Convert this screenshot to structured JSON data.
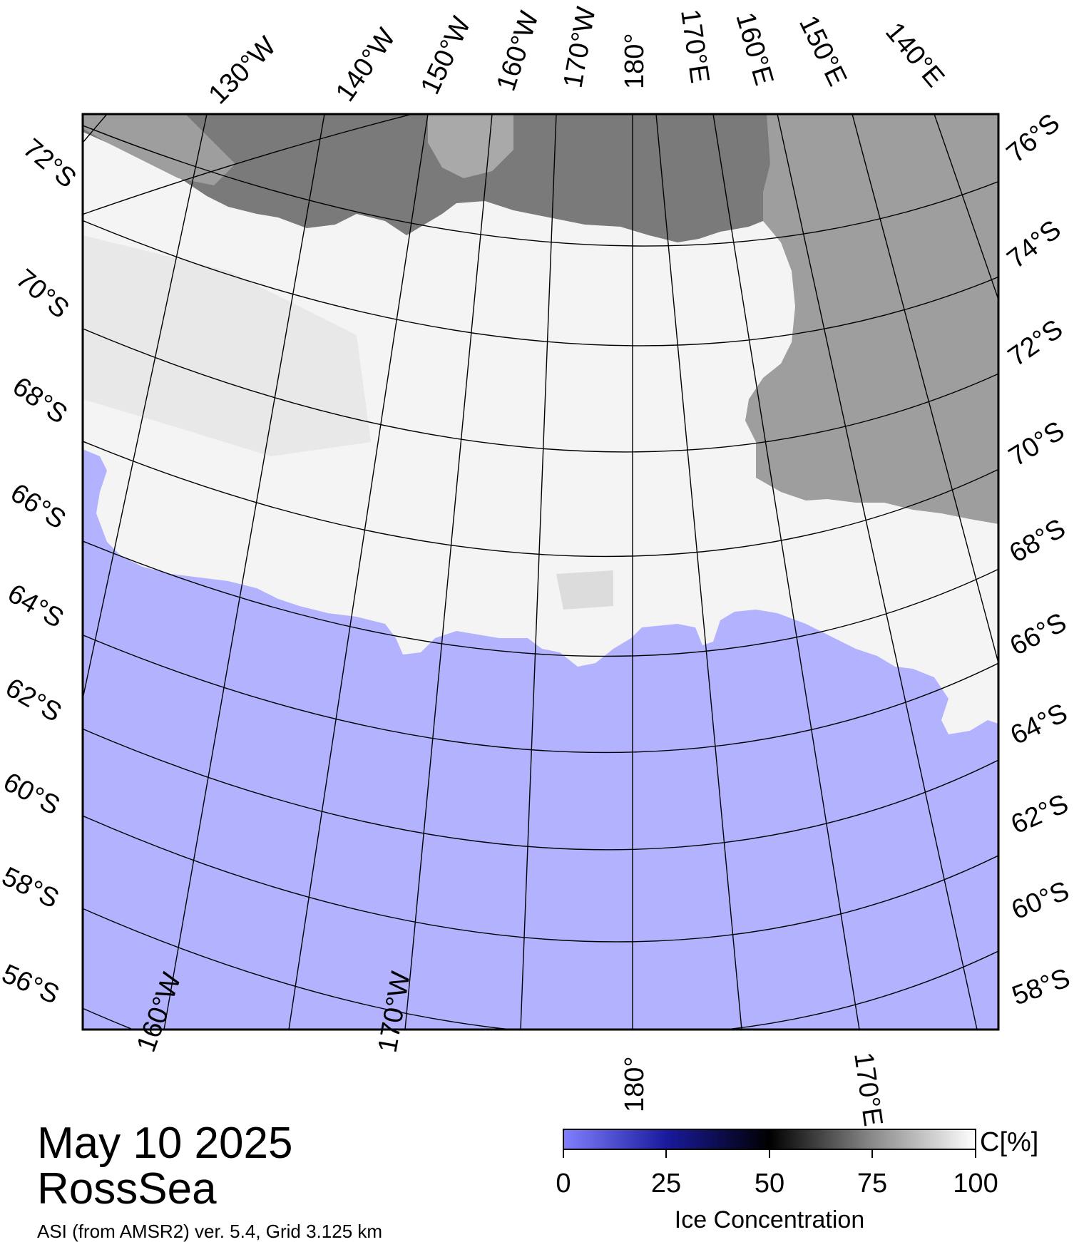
{
  "map": {
    "date": "May 10 2025",
    "region": "RossSea",
    "source": "ASI (from AMSR2) ver. 5.4,  Grid 3.125 km",
    "colors": {
      "open_water": "#b2b2ff",
      "land": "#9e9e9e",
      "ice_shelf": "#7a7a7a",
      "ice": "#ffffff",
      "frame": "#000000"
    }
  },
  "graticule": {
    "top_longitudes": [
      "130°W",
      "140°W",
      "150°W",
      "160°W",
      "170°W",
      "180°",
      "170°E",
      "160°E",
      "150°E",
      "140°E"
    ],
    "left_latitudes": [
      "72°S",
      "70°S",
      "68°S",
      "66°S",
      "64°S",
      "62°S",
      "60°S",
      "58°S",
      "56°S"
    ],
    "right_latitudes": [
      "76°S",
      "74°S",
      "72°S",
      "70°S",
      "68°S",
      "66°S",
      "64°S",
      "62°S",
      "60°S",
      "58°S"
    ],
    "bottom_longitudes": [
      "160°W",
      "170°W",
      "180°",
      "170°E"
    ]
  },
  "colorbar": {
    "ticks": [
      "0",
      "25",
      "50",
      "75",
      "100"
    ],
    "unit": "C[%]",
    "title": "Ice Concentration"
  }
}
